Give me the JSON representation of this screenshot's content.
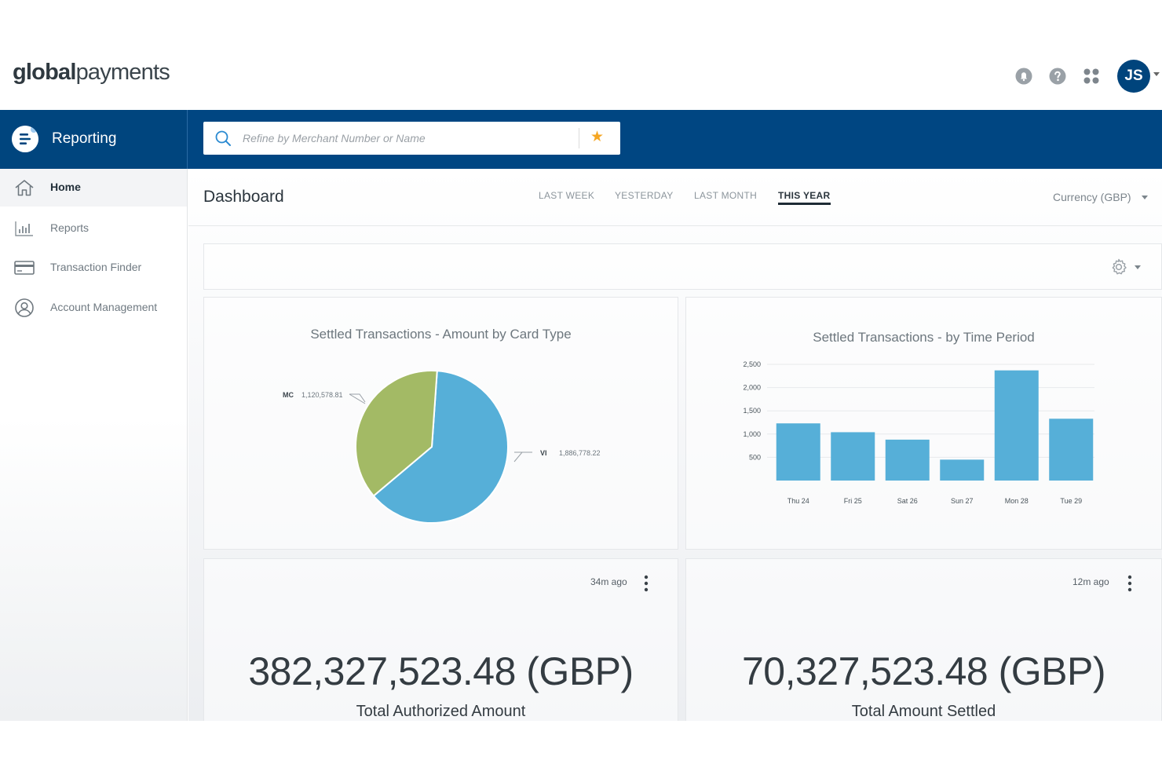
{
  "brand": {
    "logo_bold": "global",
    "logo_light": "payments"
  },
  "header": {
    "avatar_initials": "JS",
    "icons": [
      "bell-icon",
      "help-icon",
      "apps-grid-icon"
    ]
  },
  "app": {
    "section_label": "Reporting"
  },
  "search": {
    "placeholder": "Refine by Merchant Number or Name"
  },
  "sidebar": {
    "items": [
      {
        "label": "Home",
        "icon": "home-icon",
        "active": true
      },
      {
        "label": "Reports",
        "icon": "bar-chart-icon",
        "active": false
      },
      {
        "label": "Transaction Finder",
        "icon": "credit-card-icon",
        "active": false
      },
      {
        "label": "Account Management",
        "icon": "user-circle-icon",
        "active": false
      }
    ]
  },
  "dashboard": {
    "title": "Dashboard",
    "tabs": [
      {
        "label": "LAST WEEK",
        "active": false
      },
      {
        "label": "YESTERDAY",
        "active": false
      },
      {
        "label": "LAST MONTH",
        "active": false
      },
      {
        "label": "THIS YEAR",
        "active": true
      }
    ],
    "currency_label": "Currency (GBP)"
  },
  "chart_data": [
    {
      "type": "pie",
      "title": "Settled Transactions - Amount by Card Type",
      "slices": [
        {
          "label": "MC",
          "value": 1120578.81,
          "display": "1,120,578.81",
          "color": "#a3ba65"
        },
        {
          "label": "VI",
          "value": 1886778.22,
          "display": "1,886,778.22",
          "color": "#56afd8"
        }
      ]
    },
    {
      "type": "bar",
      "title": "Settled Transactions -  by Time Period",
      "categories": [
        "Thu 24",
        "Fri 25",
        "Sat 26",
        "Sun 27",
        "Mon 28",
        "Tue 29"
      ],
      "values": [
        1230,
        1040,
        880,
        450,
        2370,
        1330
      ],
      "ylim": [
        0,
        2500
      ],
      "yticks": [
        500,
        1000,
        1500,
        2000,
        2500
      ],
      "ytick_labels": [
        "500",
        "1,000",
        "1,500",
        "2,000",
        "2,500"
      ],
      "color": "#56afd8"
    }
  ],
  "stats": [
    {
      "time_ago": "34m ago",
      "value": "382,327,523.48 (GBP)",
      "label": "Total Authorized Amount"
    },
    {
      "time_ago": "12m ago",
      "value": "70,327,523.48 (GBP)",
      "label": "Total  Amount Settled"
    }
  ]
}
